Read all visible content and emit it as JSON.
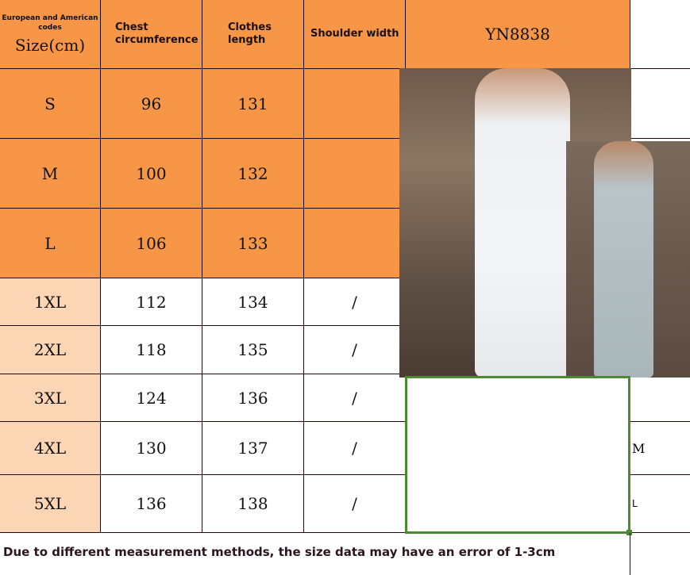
{
  "header": {
    "size_sub": "European and American codes",
    "size": "Size(cm)",
    "chest": "Chest circumference",
    "length": "Clothes length",
    "shoulder": "Shoulder width",
    "model": "YN8838"
  },
  "rows": [
    {
      "size": "S",
      "chest": "96",
      "length": "131",
      "shoulder": ""
    },
    {
      "size": "M",
      "chest": "100",
      "length": "132",
      "shoulder": ""
    },
    {
      "size": "L",
      "chest": "106",
      "length": "133",
      "shoulder": ""
    },
    {
      "size": "1XL",
      "chest": "112",
      "length": "134",
      "shoulder": "/"
    },
    {
      "size": "2XL",
      "chest": "118",
      "length": "135",
      "shoulder": "/"
    },
    {
      "size": "3XL",
      "chest": "124",
      "length": "136",
      "shoulder": "/"
    },
    {
      "size": "4XL",
      "chest": "130",
      "length": "137",
      "shoulder": "/"
    },
    {
      "size": "5XL",
      "chest": "136",
      "length": "138",
      "shoulder": "/"
    }
  ],
  "side_labels": {
    "m": "M",
    "l": "L"
  },
  "note": "Due to different measurement methods, the size data may have an error of 1-3cm",
  "colors": {
    "header": "#F79646",
    "light": "#FCD5B4",
    "selection": "#4C8A32"
  }
}
